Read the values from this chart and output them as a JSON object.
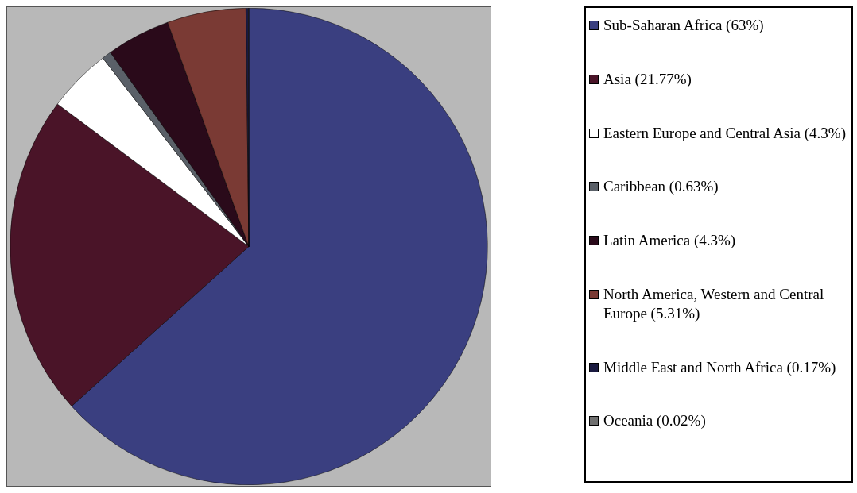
{
  "chart_data": {
    "type": "pie",
    "legend": "right",
    "categories": [
      "Sub-Saharan Africa (63%)",
      "Asia (21.77%)",
      "Eastern Europe and Central Asia (4.3%)",
      "Caribbean (0.63%)",
      "Latin America (4.3%)",
      "North America, Western and Central Europe (5.31%)",
      "Middle East and North Africa (0.17%)",
      "Oceania (0.02%)"
    ],
    "values": [
      63,
      21.77,
      4.3,
      0.63,
      4.3,
      5.31,
      0.17,
      0.02
    ],
    "colors": [
      "#3a3f80",
      "#4a1428",
      "#ffffff",
      "#5a6068",
      "#2a0a1a",
      "#7a3a34",
      "#1a1a40",
      "#707070"
    ]
  }
}
